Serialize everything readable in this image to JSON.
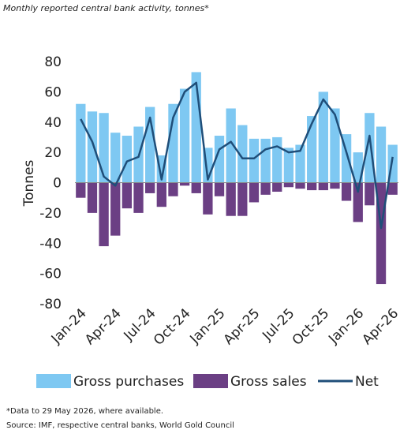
{
  "chart_data": {
    "type": "bar_line",
    "title": "Monthly reported central bank activity, tonnes*",
    "y_label": "Tonnes",
    "categories": [
      "Jan-24",
      null,
      null,
      "Apr-24",
      null,
      null,
      "Jul-24",
      null,
      null,
      "Oct-24",
      null,
      null,
      "Jan-25",
      null,
      null,
      "Apr-25",
      null,
      null,
      "Jul-25",
      null,
      null,
      "Oct-25",
      null,
      null,
      "Jan-26",
      null,
      null,
      "Apr-26"
    ],
    "series": [
      {
        "name": "Gross purchases",
        "color": "#7ec8f2",
        "kind": "bar",
        "values": [
          52,
          47,
          46,
          33,
          31,
          37,
          50,
          18,
          52,
          62,
          73,
          23,
          31,
          49,
          38,
          29,
          29,
          30,
          23,
          25,
          44,
          60,
          49,
          32,
          20,
          46,
          37,
          25
        ]
      },
      {
        "name": "Gross sales",
        "color": "#6b3f84",
        "kind": "bar",
        "values": [
          -10,
          -20,
          -42,
          -35,
          -17,
          -20,
          -7,
          -16,
          -9,
          -2,
          -7,
          -21,
          -9,
          -22,
          -22,
          -13,
          -8,
          -6,
          -3,
          -4,
          -5,
          -5,
          -4,
          -12,
          -26,
          -15,
          -67,
          -8
        ]
      },
      {
        "name": "Net",
        "color": "#1f4e79",
        "kind": "line",
        "values": [
          42,
          27,
          4,
          -2,
          14,
          17,
          43,
          2,
          43,
          60,
          66,
          2,
          22,
          27,
          16,
          16,
          22,
          24,
          20,
          21,
          39,
          55,
          45,
          20,
          -6,
          31,
          -30,
          17
        ]
      }
    ],
    "ylim": [
      -80,
      80
    ],
    "yticks": [
      -80,
      -60,
      -40,
      -20,
      0,
      20,
      40,
      60,
      80
    ],
    "footnotes": [
      "*Data to 29 May 2026, where available.",
      "Source: IMF, respective central banks, World Gold Council"
    ]
  }
}
